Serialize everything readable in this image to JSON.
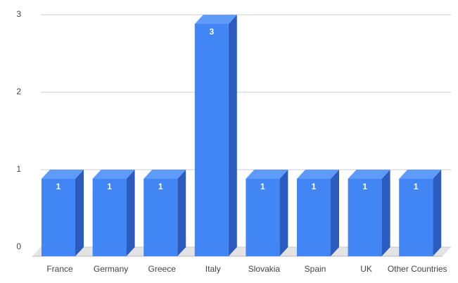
{
  "chart_data": {
    "type": "bar3d",
    "categories": [
      "France",
      "Germany",
      "Greece",
      "Italy",
      "Slovakia",
      "Spain",
      "UK",
      "Other Countries"
    ],
    "values": [
      1,
      1,
      1,
      3,
      1,
      1,
      1,
      1
    ],
    "color": "#4285f4",
    "ylim": [
      0,
      3
    ],
    "yticks": [
      0,
      1,
      2,
      3
    ],
    "grid": true
  }
}
